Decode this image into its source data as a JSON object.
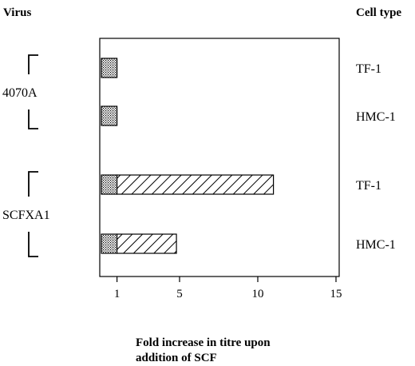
{
  "chart_data": {
    "type": "bar",
    "orientation": "horizontal",
    "stacked": true,
    "left_header": "Virus",
    "right_header": "Cell type",
    "xlabel_line1": "Fold increase in titre upon",
    "xlabel_line2": "addition of SCF",
    "x_ticks": [
      "1",
      "5",
      "10",
      "15"
    ],
    "xlim": [
      0,
      15
    ],
    "groups": [
      {
        "name": "4070A",
        "rows": [
          0,
          1
        ]
      },
      {
        "name": "SCFXA1",
        "rows": [
          2,
          3
        ]
      }
    ],
    "rows": [
      {
        "virus": "4070A",
        "cell_type": "TF-1",
        "base": 1,
        "increase": 0
      },
      {
        "virus": "4070A",
        "cell_type": "HMC-1",
        "base": 1,
        "increase": 0
      },
      {
        "virus": "SCFXA1",
        "cell_type": "TF-1",
        "base": 1,
        "increase": 10
      },
      {
        "virus": "SCFXA1",
        "cell_type": "HMC-1",
        "base": 1,
        "increase": 3.8
      }
    ],
    "series": [
      {
        "name": "base",
        "fill": "stipple-dots"
      },
      {
        "name": "increase",
        "fill": "diagonal-hatch"
      }
    ],
    "grid": false,
    "colors": {
      "ink": "#000000",
      "background": "#ffffff"
    }
  }
}
